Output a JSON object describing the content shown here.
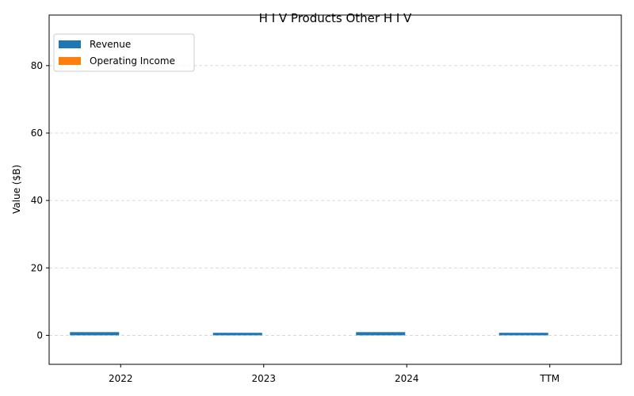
{
  "chart_data": {
    "type": "bar",
    "title": "H I V Products Other H I V",
    "xlabel": "",
    "ylabel": "Value ($B)",
    "categories": [
      "2022",
      "2023",
      "2024",
      "TTM"
    ],
    "series": [
      {
        "name": "Revenue",
        "values": [
          0.95,
          0.75,
          0.95,
          0.75
        ],
        "color": "#1f77b4"
      },
      {
        "name": "Operating Income",
        "values": [
          0,
          0,
          0,
          0
        ],
        "color": "#ff7f0e"
      }
    ],
    "ylim": [
      -8.6,
      95
    ],
    "yticks": [
      0,
      20,
      40,
      60,
      80
    ],
    "grid": "horizontal-dashed",
    "legend_position": "top-left"
  }
}
